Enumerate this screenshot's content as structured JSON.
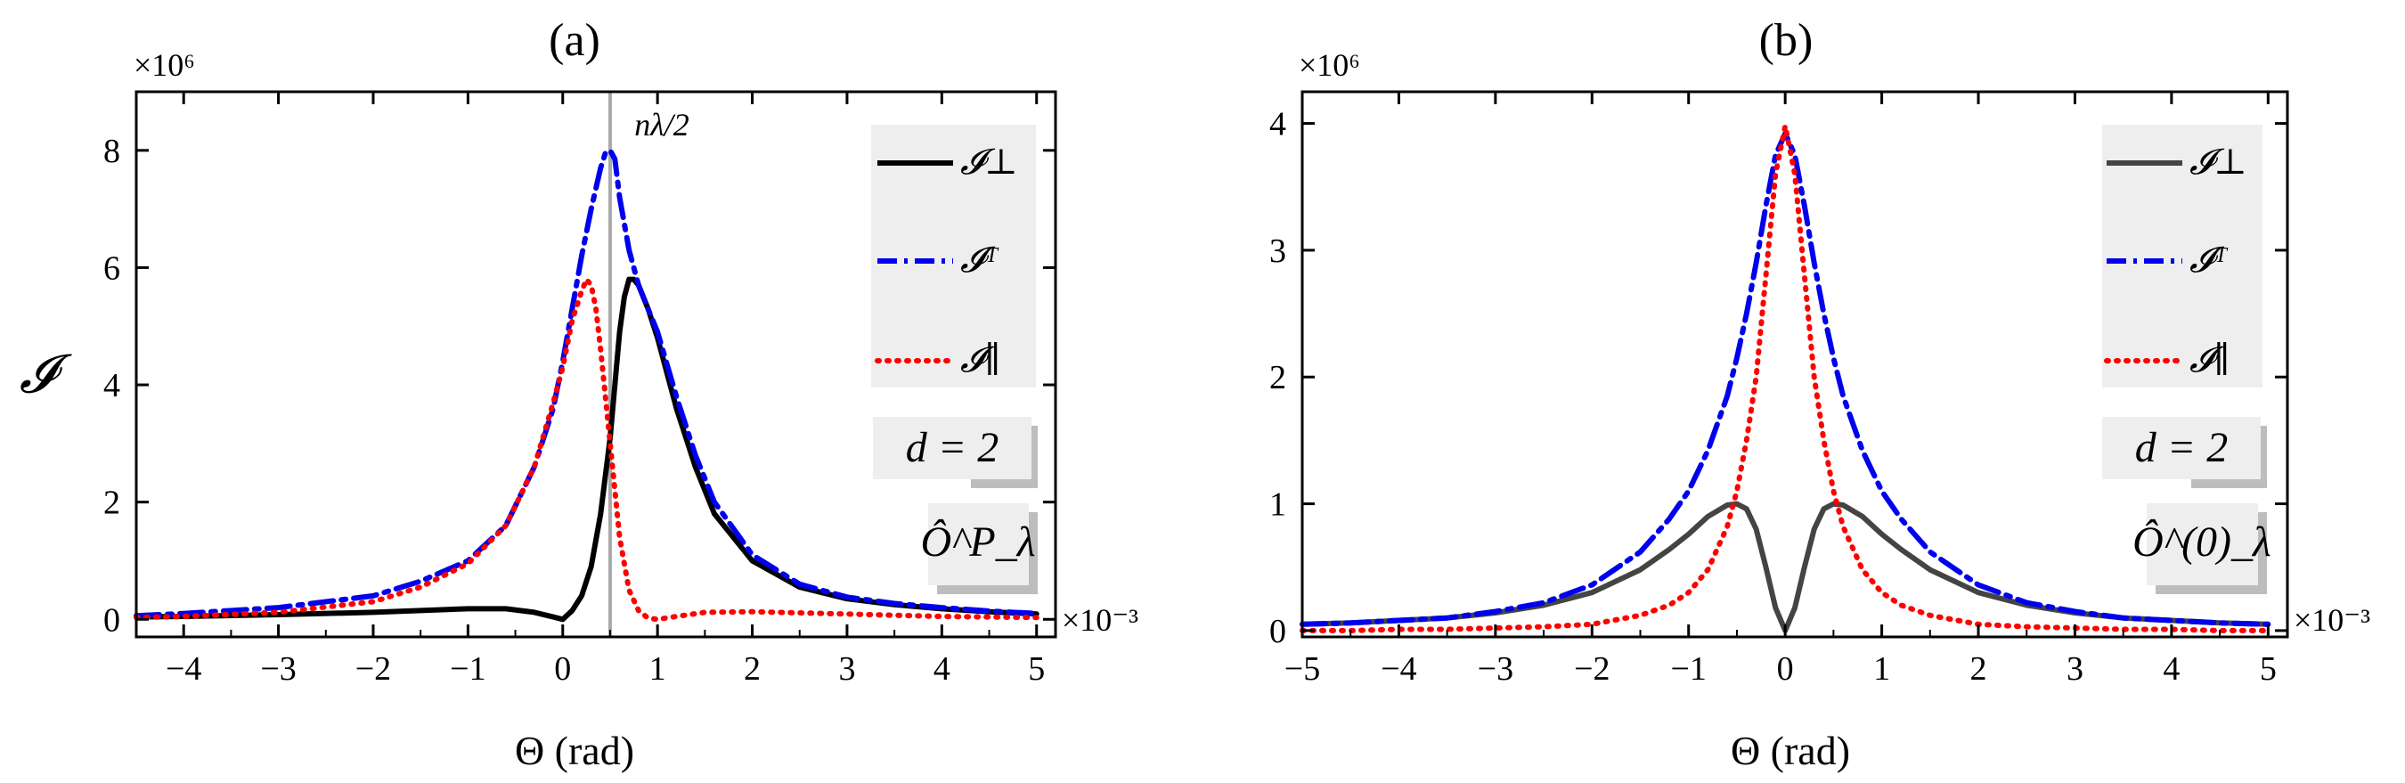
{
  "chart_data": [
    {
      "type": "line",
      "panel": "(a)",
      "title": "(a)",
      "xlabel": "Θ (rad)",
      "ylabel": "𝓘",
      "x_multiplier": "×10⁻³",
      "y_multiplier": "×10⁶",
      "xlim": [
        -4.5,
        5.2
      ],
      "ylim": [
        -0.3,
        9.0
      ],
      "xticks": [
        -4,
        -3,
        -2,
        -1,
        0,
        1,
        2,
        3,
        4,
        5
      ],
      "yticks": [
        0,
        2,
        4,
        6,
        8
      ],
      "grid": false,
      "vline": {
        "x": 0.5,
        "label": "nλ/2",
        "color": "#aaaaaa"
      },
      "legend": {
        "placement": "right",
        "entries": [
          {
            "label": "𝓘⊥",
            "color": "#000000",
            "style": "solid"
          },
          {
            "label": "𝓘ᵀ",
            "color": "#0000ee",
            "style": "dashdot"
          },
          {
            "label": "𝓘∥",
            "color": "#ff0000",
            "style": "dotted"
          }
        ]
      },
      "annotations": [
        "d = 2",
        "Ô^P_λ"
      ],
      "series": [
        {
          "name": "𝓘⊥",
          "color": "#000000",
          "style": "solid",
          "x": [
            -4.5,
            -4,
            -3,
            -2,
            -1.5,
            -1,
            -0.6,
            -0.3,
            -0.1,
            0,
            0.1,
            0.2,
            0.3,
            0.4,
            0.5,
            0.55,
            0.6,
            0.65,
            0.7,
            0.75,
            0.8,
            0.9,
            1.0,
            1.2,
            1.4,
            1.6,
            2.0,
            2.5,
            3.0,
            3.5,
            4.0,
            4.5,
            5.0
          ],
          "y": [
            0.04,
            0.05,
            0.08,
            0.12,
            0.15,
            0.18,
            0.18,
            0.12,
            0.04,
            0.0,
            0.15,
            0.4,
            0.9,
            1.8,
            3.1,
            4.0,
            4.9,
            5.5,
            5.8,
            5.8,
            5.7,
            5.3,
            4.8,
            3.6,
            2.6,
            1.8,
            1.0,
            0.55,
            0.35,
            0.25,
            0.18,
            0.13,
            0.09
          ]
        },
        {
          "name": "𝓘ᵀ",
          "color": "#0000ee",
          "style": "dashdot",
          "x": [
            -4.5,
            -4,
            -3,
            -2,
            -1.5,
            -1,
            -0.6,
            -0.3,
            -0.1,
            0,
            0.1,
            0.2,
            0.3,
            0.4,
            0.45,
            0.5,
            0.55,
            0.6,
            0.7,
            0.8,
            0.9,
            1.0,
            1.2,
            1.4,
            1.6,
            2.0,
            2.5,
            3.0,
            3.5,
            4.0,
            4.5,
            5.0
          ],
          "y": [
            0.06,
            0.1,
            0.2,
            0.4,
            0.65,
            1.0,
            1.6,
            2.6,
            3.6,
            4.4,
            5.3,
            6.2,
            7.0,
            7.7,
            7.95,
            8.0,
            7.85,
            7.2,
            6.3,
            5.7,
            5.3,
            4.9,
            3.8,
            2.8,
            2.0,
            1.1,
            0.6,
            0.38,
            0.27,
            0.2,
            0.14,
            0.1
          ]
        },
        {
          "name": "𝓘∥",
          "color": "#ff0000",
          "style": "dotted",
          "x": [
            -4.5,
            -4,
            -3,
            -2,
            -1.5,
            -1,
            -0.6,
            -0.3,
            -0.1,
            0,
            0.1,
            0.2,
            0.25,
            0.3,
            0.35,
            0.4,
            0.5,
            0.6,
            0.7,
            0.8,
            0.9,
            1.0,
            1.2,
            1.5,
            2.0,
            2.5,
            3.0,
            3.5,
            4.0,
            4.5,
            5.0
          ],
          "y": [
            0.03,
            0.05,
            0.12,
            0.3,
            0.55,
            0.95,
            1.6,
            2.6,
            3.7,
            4.3,
            5.1,
            5.6,
            5.8,
            5.7,
            5.3,
            4.6,
            3.0,
            1.4,
            0.5,
            0.15,
            0.02,
            0.0,
            0.05,
            0.12,
            0.13,
            0.11,
            0.09,
            0.07,
            0.05,
            0.04,
            0.03
          ]
        }
      ]
    },
    {
      "type": "line",
      "panel": "(b)",
      "title": "(b)",
      "xlabel": "Θ (rad)",
      "ylabel": "",
      "x_multiplier": "×10⁻³",
      "y_multiplier": "×10⁶",
      "xlim": [
        -5,
        5.2
      ],
      "ylim": [
        -0.05,
        4.25
      ],
      "xticks": [
        -5,
        -4,
        -3,
        -2,
        -1,
        0,
        1,
        2,
        3,
        4,
        5
      ],
      "yticks": [
        0,
        1,
        2,
        3,
        4
      ],
      "grid": false,
      "legend": {
        "placement": "right",
        "entries": [
          {
            "label": "𝓘⊥",
            "color": "#444444",
            "style": "solid"
          },
          {
            "label": "𝓘ᵀ",
            "color": "#0000ee",
            "style": "dashdot"
          },
          {
            "label": "𝓘∥",
            "color": "#ff0000",
            "style": "dotted"
          }
        ]
      },
      "annotations": [
        "d = 2",
        "Ô^(0)_λ"
      ],
      "series": [
        {
          "name": "𝓘⊥",
          "color": "#444444",
          "style": "solid",
          "x": [
            -5,
            -4.5,
            -4,
            -3.5,
            -3,
            -2.5,
            -2,
            -1.5,
            -1.2,
            -1,
            -0.8,
            -0.6,
            -0.5,
            -0.4,
            -0.3,
            -0.2,
            -0.1,
            0,
            0.1,
            0.2,
            0.3,
            0.4,
            0.5,
            0.6,
            0.8,
            1,
            1.2,
            1.5,
            2,
            2.5,
            3,
            3.5,
            4,
            4.5,
            5
          ],
          "y": [
            0.05,
            0.06,
            0.08,
            0.1,
            0.14,
            0.2,
            0.3,
            0.48,
            0.64,
            0.76,
            0.9,
            0.99,
            1.0,
            0.96,
            0.8,
            0.5,
            0.18,
            0.0,
            0.18,
            0.5,
            0.8,
            0.96,
            1.0,
            0.99,
            0.9,
            0.76,
            0.64,
            0.48,
            0.3,
            0.2,
            0.14,
            0.1,
            0.08,
            0.06,
            0.05
          ]
        },
        {
          "name": "𝓘ᵀ",
          "color": "#0000ee",
          "style": "dashdot",
          "x": [
            -5,
            -4.5,
            -4,
            -3.5,
            -3,
            -2.5,
            -2,
            -1.5,
            -1.2,
            -1,
            -0.8,
            -0.6,
            -0.5,
            -0.4,
            -0.3,
            -0.2,
            -0.1,
            0,
            0.1,
            0.2,
            0.3,
            0.4,
            0.5,
            0.6,
            0.8,
            1,
            1.2,
            1.5,
            2,
            2.5,
            3,
            3.5,
            4,
            4.5,
            5
          ],
          "y": [
            0.05,
            0.06,
            0.08,
            0.1,
            0.15,
            0.22,
            0.36,
            0.62,
            0.88,
            1.1,
            1.42,
            1.85,
            2.15,
            2.5,
            2.9,
            3.35,
            3.75,
            3.92,
            3.75,
            3.35,
            2.9,
            2.5,
            2.15,
            1.85,
            1.42,
            1.1,
            0.88,
            0.62,
            0.36,
            0.22,
            0.15,
            0.1,
            0.08,
            0.06,
            0.05
          ]
        },
        {
          "name": "𝓘∥",
          "color": "#ff0000",
          "style": "dotted",
          "x": [
            -5,
            -4.5,
            -4,
            -3.5,
            -3,
            -2.5,
            -2,
            -1.5,
            -1.2,
            -1,
            -0.8,
            -0.6,
            -0.5,
            -0.4,
            -0.3,
            -0.2,
            -0.1,
            0,
            0.1,
            0.2,
            0.3,
            0.4,
            0.5,
            0.6,
            0.8,
            1,
            1.2,
            1.5,
            2,
            2.5,
            3,
            3.5,
            4,
            4.5,
            5
          ],
          "y": [
            0.0,
            0.0,
            0.01,
            0.01,
            0.02,
            0.03,
            0.05,
            0.12,
            0.2,
            0.3,
            0.48,
            0.82,
            1.1,
            1.5,
            2.0,
            2.8,
            3.6,
            3.98,
            3.6,
            2.8,
            2.0,
            1.5,
            1.1,
            0.82,
            0.48,
            0.3,
            0.2,
            0.12,
            0.05,
            0.03,
            0.02,
            0.01,
            0.01,
            0.0,
            0.0
          ]
        }
      ]
    }
  ]
}
